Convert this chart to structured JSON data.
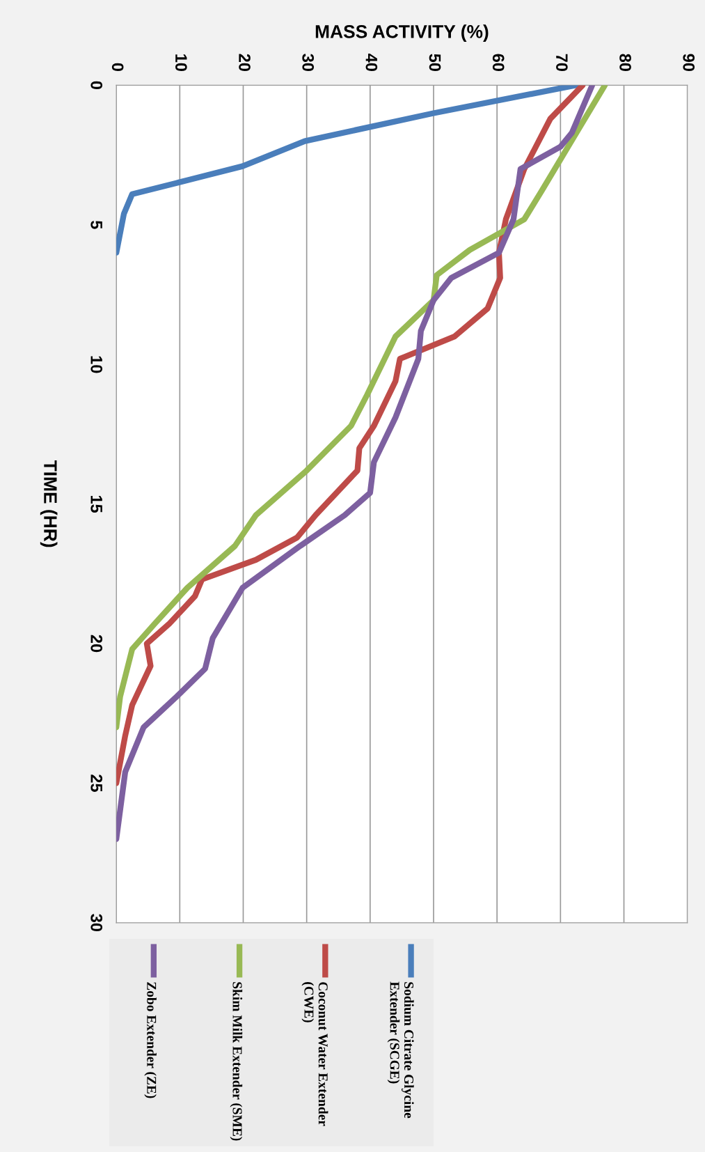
{
  "chart_data": {
    "type": "line",
    "xlabel": "MASS ACTIVITY (%)",
    "ylabel": "TIME (HR)",
    "xlim": [
      0,
      90
    ],
    "xticks": [
      0,
      10,
      20,
      30,
      40,
      50,
      60,
      70,
      80,
      90
    ],
    "ylim": [
      30,
      0
    ],
    "yticks": [
      0,
      5,
      10,
      15,
      20,
      25,
      30
    ],
    "grid": "x",
    "legend": "bottom",
    "marker": "none",
    "line_style": "solid",
    "series": [
      {
        "name": "Sodium Citrate Glycine Extender (SCGE)",
        "color": "#4a7ebb",
        "values": [
          0,
          1,
          2,
          2.9,
          3.5,
          3.9,
          4.6,
          6
        ],
        "x": [
          72.4,
          50,
          29.7,
          19.9,
          9.5,
          2.5,
          1.2,
          0
        ]
      },
      {
        "name": "Coconut Water Extender (CWE)",
        "color": "#be4b48",
        "values": [
          0,
          1.2,
          3,
          4.8,
          6,
          6.9,
          8,
          9,
          9.8,
          10.6,
          12.2,
          13,
          13.8,
          15.4,
          16.2,
          17,
          17.7,
          18.3,
          19.3,
          20,
          20.8,
          22.2,
          23.3,
          25
        ],
        "x": [
          73.5,
          68.4,
          64.3,
          61.4,
          60.3,
          60.5,
          58.5,
          53.3,
          44.7,
          44,
          40.6,
          38.3,
          38,
          31.4,
          28.5,
          22,
          13.5,
          12.4,
          8.3,
          4.8,
          5.4,
          2.5,
          1.4,
          0
        ]
      },
      {
        "name": "Skim Milk Extender (SME)",
        "color": "#98b954",
        "values": [
          0,
          2.2,
          3.8,
          4.8,
          5.9,
          6.8,
          7.7,
          9,
          11.1,
          12.2,
          13.8,
          15.4,
          16.5,
          18,
          19.3,
          20.2,
          21.9,
          23
        ],
        "x": [
          77,
          71.2,
          67,
          64.3,
          55.7,
          50.5,
          50,
          44,
          39.5,
          37,
          30,
          22,
          18.7,
          11.2,
          6,
          2.5,
          0.6,
          0
        ]
      },
      {
        "name": "Zobo Extender (ZE)",
        "color": "#7d60a0",
        "values": [
          0,
          1.7,
          2.2,
          3,
          4.8,
          6,
          6.9,
          7.7,
          8.8,
          9.8,
          11.9,
          13.5,
          14.6,
          15.4,
          16.5,
          18,
          19.8,
          20.9,
          21.9,
          23,
          24.6,
          27
        ],
        "x": [
          75,
          71.8,
          70,
          63.7,
          62.6,
          60.3,
          52.8,
          50,
          48,
          47.6,
          44,
          40.6,
          40,
          36,
          29,
          19.9,
          15.2,
          14,
          9.5,
          4.3,
          1.4,
          0
        ]
      }
    ]
  }
}
